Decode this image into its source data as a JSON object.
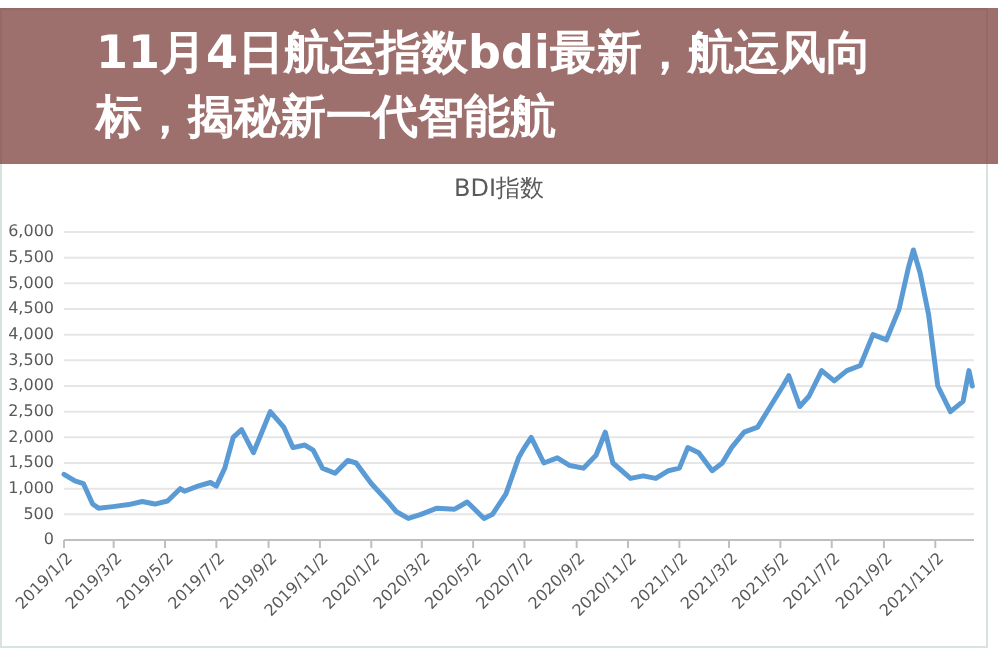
{
  "chart_data": {
    "type": "line",
    "title": "BDI指数",
    "annotations": [
      "11月4日航运指数bdi最新，航运风向标，揭秘新一代智能航"
    ],
    "x": [
      "2019-01-02",
      "2019-01-15",
      "2019-01-25",
      "2019-02-05",
      "2019-02-12",
      "2019-03-01",
      "2019-03-20",
      "2019-04-05",
      "2019-04-20",
      "2019-05-05",
      "2019-05-20",
      "2019-05-25",
      "2019-06-10",
      "2019-06-25",
      "2019-07-02",
      "2019-07-12",
      "2019-07-22",
      "2019-08-01",
      "2019-08-15",
      "2019-08-25",
      "2019-09-04",
      "2019-09-20",
      "2019-10-01",
      "2019-10-15",
      "2019-10-25",
      "2019-11-05",
      "2019-11-20",
      "2019-12-05",
      "2019-12-15",
      "2020-01-02",
      "2020-01-20",
      "2020-02-01",
      "2020-02-15",
      "2020-03-01",
      "2020-03-20",
      "2020-04-10",
      "2020-04-25",
      "2020-05-15",
      "2020-05-25",
      "2020-06-10",
      "2020-06-25",
      "2020-07-02",
      "2020-07-10",
      "2020-07-25",
      "2020-08-10",
      "2020-08-25",
      "2020-09-10",
      "2020-09-25",
      "2020-10-06",
      "2020-10-15",
      "2020-11-05",
      "2020-11-20",
      "2020-12-05",
      "2020-12-20",
      "2021-01-02",
      "2021-01-12",
      "2021-01-25",
      "2021-02-10",
      "2021-02-22",
      "2021-03-05",
      "2021-03-20",
      "2021-04-05",
      "2021-04-20",
      "2021-05-05",
      "2021-05-12",
      "2021-05-25",
      "2021-06-05",
      "2021-06-20",
      "2021-07-05",
      "2021-07-20",
      "2021-08-05",
      "2021-08-20",
      "2021-09-05",
      "2021-09-20",
      "2021-10-01",
      "2021-10-07",
      "2021-10-15",
      "2021-10-25",
      "2021-11-05",
      "2021-11-20",
      "2021-12-05",
      "2021-12-12",
      "2021-12-16"
    ],
    "series": [
      {
        "color": "#5b9bd5",
        "values": [
          1280,
          1150,
          1100,
          700,
          620,
          650,
          690,
          750,
          700,
          760,
          1000,
          950,
          1050,
          1120,
          1050,
          1400,
          2000,
          2150,
          1700,
          2100,
          2500,
          2200,
          1800,
          1850,
          1750,
          1400,
          1300,
          1550,
          1500,
          1100,
          780,
          550,
          420,
          500,
          620,
          600,
          740,
          420,
          500,
          900,
          1600,
          1800,
          2000,
          1500,
          1600,
          1450,
          1400,
          1650,
          2100,
          1500,
          1200,
          1250,
          1200,
          1350,
          1400,
          1800,
          1700,
          1350,
          1500,
          1800,
          2100,
          2200,
          2600,
          3000,
          3200,
          2600,
          2800,
          3300,
          3100,
          3300,
          3400,
          4000,
          3900,
          4500,
          5300,
          5650,
          5200,
          4400,
          3000,
          2500,
          2700,
          3300,
          3000
        ]
      }
    ],
    "xlim": [
      "2019-01-02",
      "2021-12-18"
    ],
    "xticks": [
      {
        "value": "2019-01-02",
        "label": "2019/1/2"
      },
      {
        "value": "2019-03-02",
        "label": "2019/3/2"
      },
      {
        "value": "2019-05-02",
        "label": "2019/5/2"
      },
      {
        "value": "2019-07-02",
        "label": "2019/7/2"
      },
      {
        "value": "2019-09-02",
        "label": "2019/9/2"
      },
      {
        "value": "2019-11-02",
        "label": "2019/11/2"
      },
      {
        "value": "2020-01-02",
        "label": "2020/1/2"
      },
      {
        "value": "2020-03-02",
        "label": "2020/3/2"
      },
      {
        "value": "2020-05-02",
        "label": "2020/5/2"
      },
      {
        "value": "2020-07-02",
        "label": "2020/7/2"
      },
      {
        "value": "2020-09-02",
        "label": "2020/9/2"
      },
      {
        "value": "2020-11-02",
        "label": "2020/11/2"
      },
      {
        "value": "2021-01-02",
        "label": "2021/1/2"
      },
      {
        "value": "2021-03-02",
        "label": "2021/3/2"
      },
      {
        "value": "2021-05-02",
        "label": "2021/5/2"
      },
      {
        "value": "2021-07-02",
        "label": "2021/7/2"
      },
      {
        "value": "2021-09-02",
        "label": "2021/9/2"
      },
      {
        "value": "2021-11-02",
        "label": "2021/11/2"
      }
    ],
    "ylim": [
      0,
      6000
    ],
    "yticks": [
      {
        "value": 0,
        "label": "0"
      },
      {
        "value": 500,
        "label": "500"
      },
      {
        "value": 1000,
        "label": "1,000"
      },
      {
        "value": 1500,
        "label": "1,500"
      },
      {
        "value": 2000,
        "label": "2,000"
      },
      {
        "value": 2500,
        "label": "2,500"
      },
      {
        "value": 3000,
        "label": "3,000"
      },
      {
        "value": 3500,
        "label": "3,500"
      },
      {
        "value": 4000,
        "label": "4,000"
      },
      {
        "value": 4500,
        "label": "4,500"
      },
      {
        "value": 5000,
        "label": "5,000"
      },
      {
        "value": 5500,
        "label": "5,500"
      },
      {
        "value": 6000,
        "label": "6,000"
      }
    ],
    "grid": "y",
    "marker": "none",
    "line_style": "solid"
  }
}
